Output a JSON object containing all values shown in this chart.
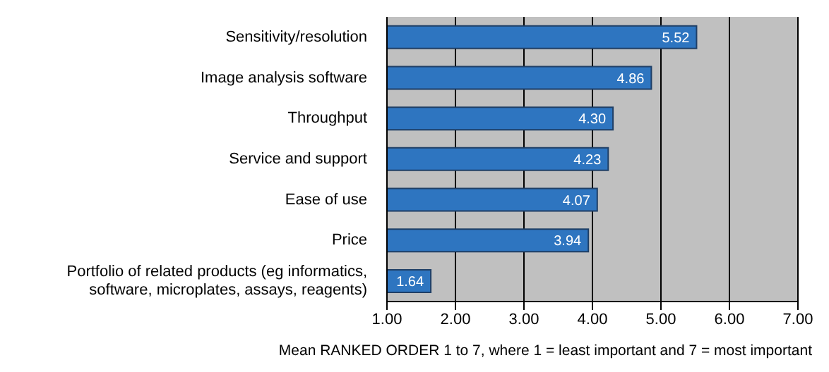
{
  "chart_data": {
    "type": "bar",
    "orientation": "horizontal",
    "categories": [
      "Sensitivity/resolution",
      "Image analysis software",
      "Throughput",
      "Service and support",
      "Ease of use",
      "Price",
      "Portfolio of related products (eg informatics, software, microplates, assays, reagents)"
    ],
    "values": [
      5.52,
      4.86,
      4.3,
      4.23,
      4.07,
      3.94,
      1.64
    ],
    "color": "#2e75c0",
    "xlim": [
      1,
      7
    ],
    "xticks": [
      {
        "value": 1,
        "label": "1.00"
      },
      {
        "value": 2,
        "label": "2.00"
      },
      {
        "value": 3,
        "label": "3.00"
      },
      {
        "value": 4,
        "label": "4.00"
      },
      {
        "value": 5,
        "label": "5.00"
      },
      {
        "value": 6,
        "label": "6.00"
      },
      {
        "value": 7,
        "label": "7.00"
      }
    ],
    "xlabel": "Mean RANKED ORDER 1 to 7, where 1 = least important and 7 = most important",
    "value_labels": [
      "5.52",
      "4.86",
      "4.30",
      "4.23",
      "4.07",
      "3.94",
      "1.64"
    ],
    "grid": "x"
  }
}
